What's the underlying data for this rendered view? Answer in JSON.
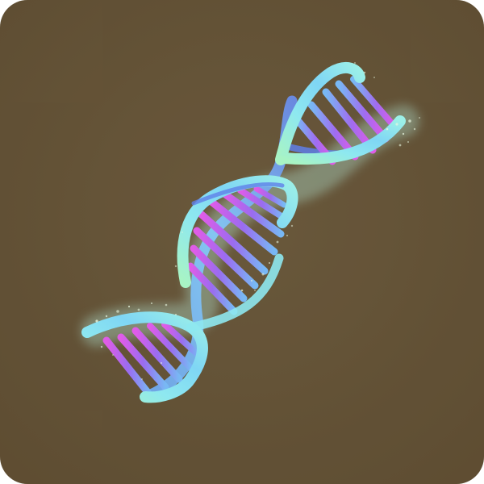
{
  "image": {
    "kind": "app-icon-tile",
    "subject": "dna-double-helix",
    "texts": []
  },
  "colors": {
    "background": "#7b6644",
    "background_dark": "#6f5a3a",
    "background_light": "#8a7552",
    "strand_cyan": "#8ff0f2",
    "strand_mint": "#9cf0c8",
    "strand_blue": "#5f7fe8",
    "rung_magenta": "#e05ce8",
    "rung_violet": "#9a6cf0",
    "rung_sky": "#78b8f4",
    "sparkle": "#e8f6e0"
  }
}
